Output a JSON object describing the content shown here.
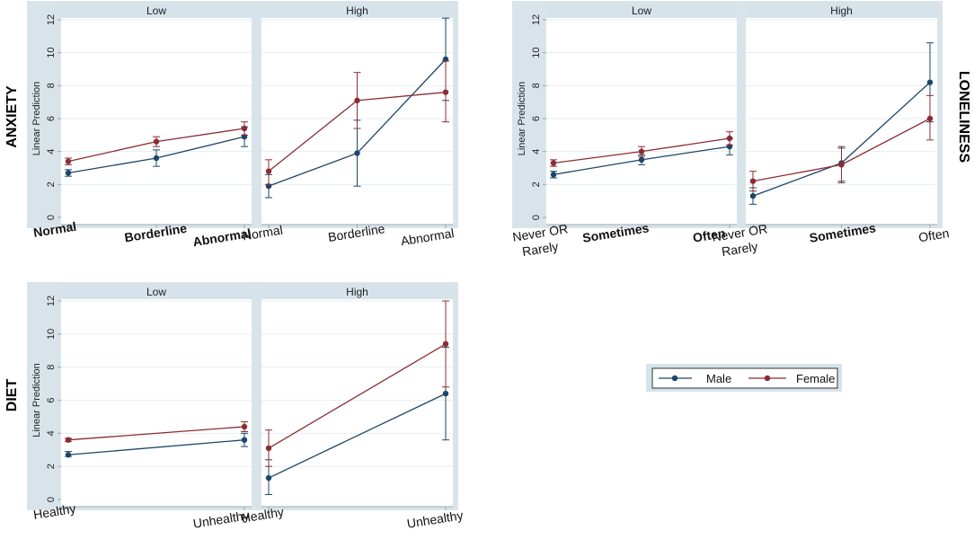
{
  "colors": {
    "male": "#1d4569",
    "female": "#8b2c33",
    "strip": "#d6e3ea",
    "grid": "#e6eef2",
    "axis": "#9aa9b1"
  },
  "legend": {
    "male_label": "Male",
    "female_label": "Female"
  },
  "chart_data": [
    {
      "type": "line",
      "row_title": "ANXIETY",
      "ylabel": "Linear Prediction",
      "ylim": [
        0,
        12
      ],
      "yticks": [
        "0",
        "2",
        "4",
        "6",
        "8",
        "10",
        "12"
      ],
      "panels": [
        {
          "strip": "Low",
          "categories": [
            "Normal",
            "Borderline",
            "Abnormal"
          ],
          "bold": [
            true,
            true,
            true
          ],
          "series": [
            {
              "name": "Male",
              "values": [
                2.7,
                3.6,
                4.9
              ],
              "ci": [
                [
                  2.5,
                  2.9
                ],
                [
                  3.1,
                  4.1
                ],
                [
                  4.3,
                  5.5
                ]
              ]
            },
            {
              "name": "Female",
              "values": [
                3.4,
                4.6,
                5.4
              ],
              "ci": [
                [
                  3.2,
                  3.6
                ],
                [
                  4.3,
                  4.9
                ],
                [
                  5.0,
                  5.8
                ]
              ]
            }
          ]
        },
        {
          "strip": "High",
          "categories": [
            "Normal",
            "Borderline",
            "Abnormal"
          ],
          "bold": [
            false,
            false,
            false
          ],
          "series": [
            {
              "name": "Male",
              "values": [
                1.9,
                3.9,
                9.6
              ],
              "ci": [
                [
                  1.2,
                  2.6
                ],
                [
                  1.9,
                  5.9
                ],
                [
                  7.1,
                  12.1
                ]
              ]
            },
            {
              "name": "Female",
              "values": [
                2.8,
                7.1,
                7.6
              ],
              "ci": [
                [
                  2.0,
                  3.5
                ],
                [
                  5.4,
                  8.8
                ],
                [
                  5.8,
                  9.5
                ]
              ]
            }
          ]
        }
      ]
    },
    {
      "type": "line",
      "row_title": "LONELINESS",
      "ylabel": "Linear Prediction",
      "ylim": [
        0,
        12
      ],
      "yticks": [
        "0",
        "2",
        "4",
        "6",
        "8",
        "10",
        "12"
      ],
      "panels": [
        {
          "strip": "Low",
          "categories": [
            "Never OR\nRarely",
            "Sometimes",
            "Often"
          ],
          "bold": [
            false,
            true,
            true
          ],
          "series": [
            {
              "name": "Male",
              "values": [
                2.6,
                3.5,
                4.3
              ],
              "ci": [
                [
                  2.4,
                  2.8
                ],
                [
                  3.2,
                  3.8
                ],
                [
                  3.8,
                  4.8
                ]
              ]
            },
            {
              "name": "Female",
              "values": [
                3.3,
                4.0,
                4.8
              ],
              "ci": [
                [
                  3.1,
                  3.5
                ],
                [
                  3.7,
                  4.3
                ],
                [
                  4.4,
                  5.2
                ]
              ]
            }
          ]
        },
        {
          "strip": "High",
          "categories": [
            "Never OR\nRarely",
            "Sometimes",
            "Often"
          ],
          "bold": [
            false,
            true,
            false
          ],
          "series": [
            {
              "name": "Male",
              "values": [
                1.3,
                3.3,
                8.2
              ],
              "ci": [
                [
                  0.8,
                  1.8
                ],
                [
                  2.2,
                  4.3
                ],
                [
                  5.8,
                  10.6
                ]
              ]
            },
            {
              "name": "Female",
              "values": [
                2.2,
                3.2,
                6.0
              ],
              "ci": [
                [
                  1.6,
                  2.8
                ],
                [
                  2.1,
                  4.2
                ],
                [
                  4.7,
                  7.4
                ]
              ]
            }
          ]
        }
      ]
    },
    {
      "type": "line",
      "row_title": "DIET",
      "ylabel": "Linear Prediction",
      "ylim": [
        0,
        12
      ],
      "yticks": [
        "0",
        "2",
        "4",
        "6",
        "8",
        "10",
        "12"
      ],
      "panels": [
        {
          "strip": "Low",
          "categories": [
            "Healthy",
            "Unhealthy"
          ],
          "bold": [
            false,
            false
          ],
          "series": [
            {
              "name": "Male",
              "values": [
                2.7,
                3.6
              ],
              "ci": [
                [
                  2.6,
                  2.9
                ],
                [
                  3.2,
                  4.0
                ]
              ]
            },
            {
              "name": "Female",
              "values": [
                3.6,
                4.4
              ],
              "ci": [
                [
                  3.5,
                  3.7
                ],
                [
                  4.1,
                  4.7
                ]
              ]
            }
          ]
        },
        {
          "strip": "High",
          "categories": [
            "Healthy",
            "Unhealthy"
          ],
          "bold": [
            false,
            false
          ],
          "series": [
            {
              "name": "Male",
              "values": [
                1.3,
                6.4
              ],
              "ci": [
                [
                  0.3,
                  2.4
                ],
                [
                  3.6,
                  9.2
                ]
              ]
            },
            {
              "name": "Female",
              "values": [
                3.1,
                9.4
              ],
              "ci": [
                [
                  2.0,
                  4.2
                ],
                [
                  6.8,
                  12.0
                ]
              ]
            }
          ]
        }
      ]
    }
  ]
}
